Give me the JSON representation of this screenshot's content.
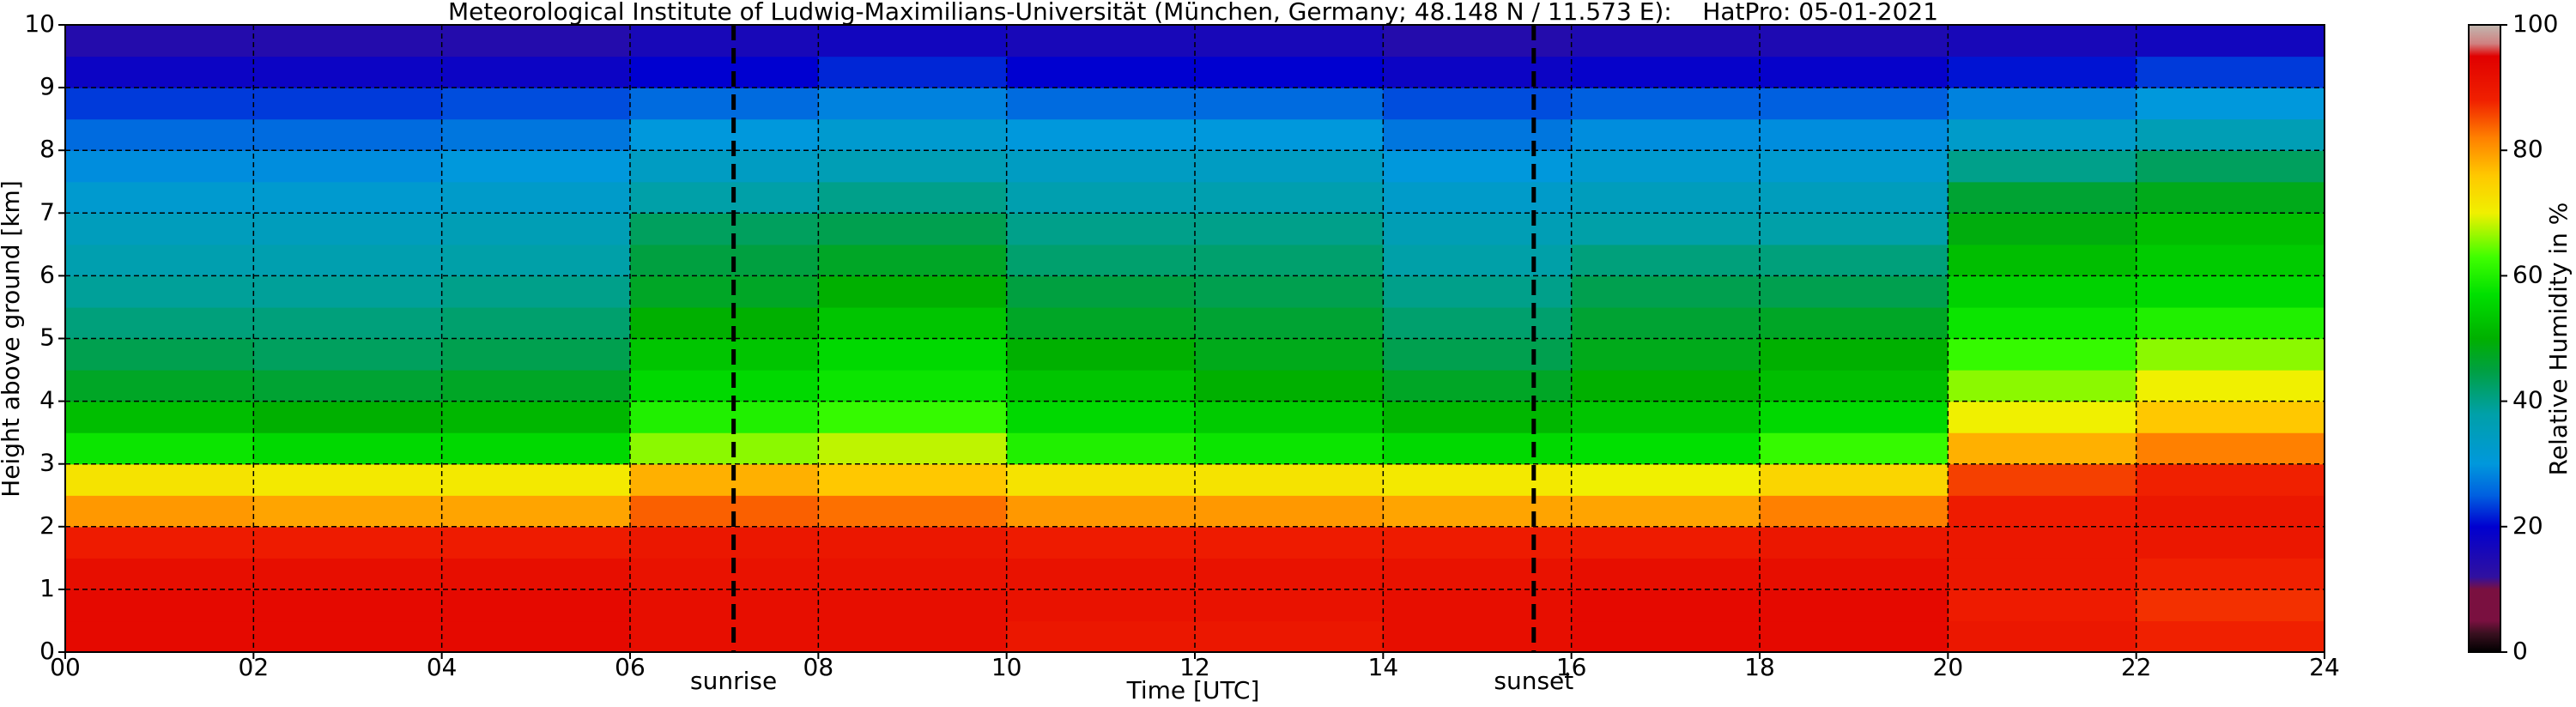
{
  "chart_data": {
    "type": "heatmap",
    "title": "Meteorological Institute of Ludwig-Maximilians-Universität (München, Germany; 48.148 N / 11.573 E):    HatPro: 05-01-2021",
    "x_label": "Time [UTC]",
    "y_label": "Height above ground [km]",
    "colorbar_label": "Relative Humidity in %",
    "x_bins": [
      0,
      2,
      4,
      6,
      8,
      10,
      12,
      14,
      16,
      18,
      20,
      22,
      24
    ],
    "y_bins": [
      0,
      0.5,
      1,
      1.5,
      2,
      2.5,
      3,
      3.5,
      4,
      4.5,
      5,
      5.5,
      6,
      6.5,
      7,
      7.5,
      8,
      8.5,
      9,
      9.5,
      10
    ],
    "z": [
      [
        93,
        93,
        93,
        92,
        92,
        90,
        90,
        92,
        93,
        93,
        90,
        88
      ],
      [
        93,
        93,
        93,
        92,
        92,
        91,
        91,
        92,
        93,
        93,
        89,
        87
      ],
      [
        92,
        92,
        92,
        91,
        91,
        91,
        91,
        91,
        92,
        92,
        90,
        88
      ],
      [
        89,
        89,
        89,
        90,
        90,
        89,
        89,
        89,
        89,
        90,
        90,
        90
      ],
      [
        80,
        79,
        79,
        84,
        83,
        80,
        80,
        79,
        79,
        82,
        89,
        90
      ],
      [
        72,
        71,
        71,
        78,
        76,
        72,
        72,
        71,
        70,
        74,
        86,
        88
      ],
      [
        58,
        56,
        56,
        66,
        68,
        60,
        58,
        56,
        57,
        62,
        78,
        82
      ],
      [
        52,
        50,
        51,
        60,
        62,
        56,
        54,
        51,
        53,
        56,
        70,
        76
      ],
      [
        47,
        46,
        47,
        56,
        58,
        53,
        50,
        47,
        50,
        52,
        66,
        70
      ],
      [
        44,
        43,
        44,
        53,
        56,
        50,
        48,
        44,
        48,
        50,
        62,
        66
      ],
      [
        41,
        41,
        42,
        50,
        53,
        47,
        46,
        42,
        46,
        47,
        58,
        60
      ],
      [
        39,
        39,
        40,
        47,
        50,
        45,
        44,
        40,
        44,
        44,
        55,
        56
      ],
      [
        37,
        37,
        38,
        45,
        47,
        42,
        42,
        38,
        41,
        41,
        52,
        54
      ],
      [
        35,
        35,
        36,
        43,
        44,
        40,
        40,
        36,
        38,
        38,
        49,
        52
      ],
      [
        32,
        32,
        33,
        38,
        40,
        37,
        37,
        33,
        35,
        35,
        46,
        48
      ],
      [
        29,
        29,
        30,
        34,
        36,
        34,
        34,
        30,
        32,
        32,
        40,
        43
      ],
      [
        26,
        26,
        27,
        30,
        32,
        30,
        30,
        27,
        29,
        29,
        33,
        36
      ],
      [
        23,
        23,
        24,
        26,
        28,
        26,
        26,
        24,
        25,
        25,
        28,
        30
      ],
      [
        18,
        18,
        18,
        20,
        22,
        20,
        20,
        18,
        19,
        19,
        21,
        23
      ],
      [
        14,
        14,
        14,
        16,
        17,
        16,
        16,
        14,
        15,
        15,
        16,
        17
      ]
    ],
    "xlim": [
      0,
      24
    ],
    "xticks": [
      {
        "value": 0,
        "label": "00"
      },
      {
        "value": 2,
        "label": "02"
      },
      {
        "value": 4,
        "label": "04"
      },
      {
        "value": 6,
        "label": "06"
      },
      {
        "value": 8,
        "label": "08"
      },
      10,
      12,
      14,
      16,
      18,
      20,
      22,
      24
    ],
    "ylim": [
      0,
      10
    ],
    "yticks": [
      0,
      1,
      2,
      3,
      4,
      5,
      6,
      7,
      8,
      9,
      10
    ],
    "clim": [
      0,
      100
    ],
    "cticks": [
      0,
      20,
      40,
      60,
      80,
      100
    ],
    "colorscale": [
      [
        0,
        "#000000"
      ],
      [
        3,
        "#3a1020"
      ],
      [
        5,
        "#7a1040"
      ],
      [
        10,
        "#7a1040"
      ],
      [
        12,
        "#3010a0"
      ],
      [
        20,
        "#0000d0"
      ],
      [
        25,
        "#0060e0"
      ],
      [
        30,
        "#0098dc"
      ],
      [
        38,
        "#00a0a8"
      ],
      [
        45,
        "#00a040"
      ],
      [
        50,
        "#00b000"
      ],
      [
        57,
        "#00e000"
      ],
      [
        63,
        "#40ff00"
      ],
      [
        70,
        "#f0f000"
      ],
      [
        76,
        "#ffc800"
      ],
      [
        82,
        "#ff8000"
      ],
      [
        88,
        "#f02000"
      ],
      [
        95,
        "#e00000"
      ],
      [
        97,
        "#d08080"
      ],
      [
        100,
        "#c0b8b0"
      ]
    ],
    "grid": true,
    "annotations": [
      {
        "text": "sunrise",
        "x": 7.1
      },
      {
        "text": "sunset",
        "x": 15.6
      }
    ]
  }
}
